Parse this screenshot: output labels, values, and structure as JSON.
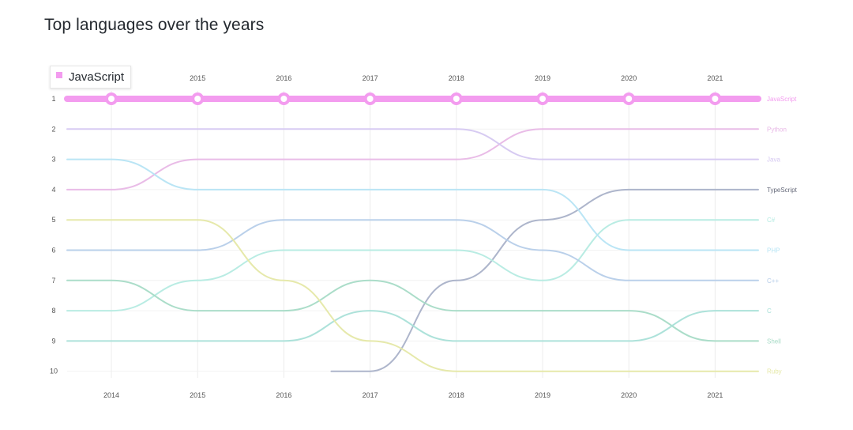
{
  "page": {
    "title": "Top languages over the years"
  },
  "tooltip": {
    "label": "JavaScript",
    "color": "#f39cef"
  },
  "chart_data": {
    "type": "bump",
    "title": "Top languages over the years",
    "years": [
      "2014",
      "2015",
      "2016",
      "2017",
      "2018",
      "2019",
      "2020",
      "2021"
    ],
    "ranks": [
      "1",
      "2",
      "3",
      "4",
      "5",
      "6",
      "7",
      "8",
      "9",
      "10"
    ],
    "highlighted": "JavaScript",
    "series": [
      {
        "name": "JavaScript",
        "color": "#f39cef",
        "ranks": [
          1,
          1,
          1,
          1,
          1,
          1,
          1,
          1
        ]
      },
      {
        "name": "Python",
        "color": "#e8b8e6",
        "ranks": [
          4,
          3,
          3,
          3,
          3,
          2,
          2,
          2
        ]
      },
      {
        "name": "Java",
        "color": "#d5c8f1",
        "ranks": [
          2,
          2,
          2,
          2,
          2,
          3,
          3,
          3
        ]
      },
      {
        "name": "TypeScript",
        "color": "#a9b1c8",
        "ranks": [
          null,
          null,
          null,
          10,
          7,
          5,
          4,
          4
        ]
      },
      {
        "name": "C#",
        "color": "#b5ebe2",
        "ranks": [
          8,
          7,
          6,
          6,
          6,
          7,
          5,
          5
        ]
      },
      {
        "name": "PHP",
        "color": "#b6e4f4",
        "ranks": [
          3,
          4,
          4,
          4,
          4,
          4,
          6,
          6
        ]
      },
      {
        "name": "C++",
        "color": "#b6cde9",
        "ranks": [
          6,
          6,
          5,
          5,
          5,
          6,
          7,
          7
        ]
      },
      {
        "name": "Shell",
        "color": "#a6dbc6",
        "ranks": [
          7,
          8,
          8,
          7,
          8,
          8,
          8,
          9
        ]
      },
      {
        "name": "C",
        "color": "#a9e0d8",
        "ranks": [
          9,
          9,
          9,
          8,
          9,
          9,
          9,
          8
        ]
      },
      {
        "name": "Ruby",
        "color": "#e5e8a6",
        "ranks": [
          5,
          5,
          7,
          9,
          10,
          10,
          10,
          10
        ]
      }
    ]
  }
}
